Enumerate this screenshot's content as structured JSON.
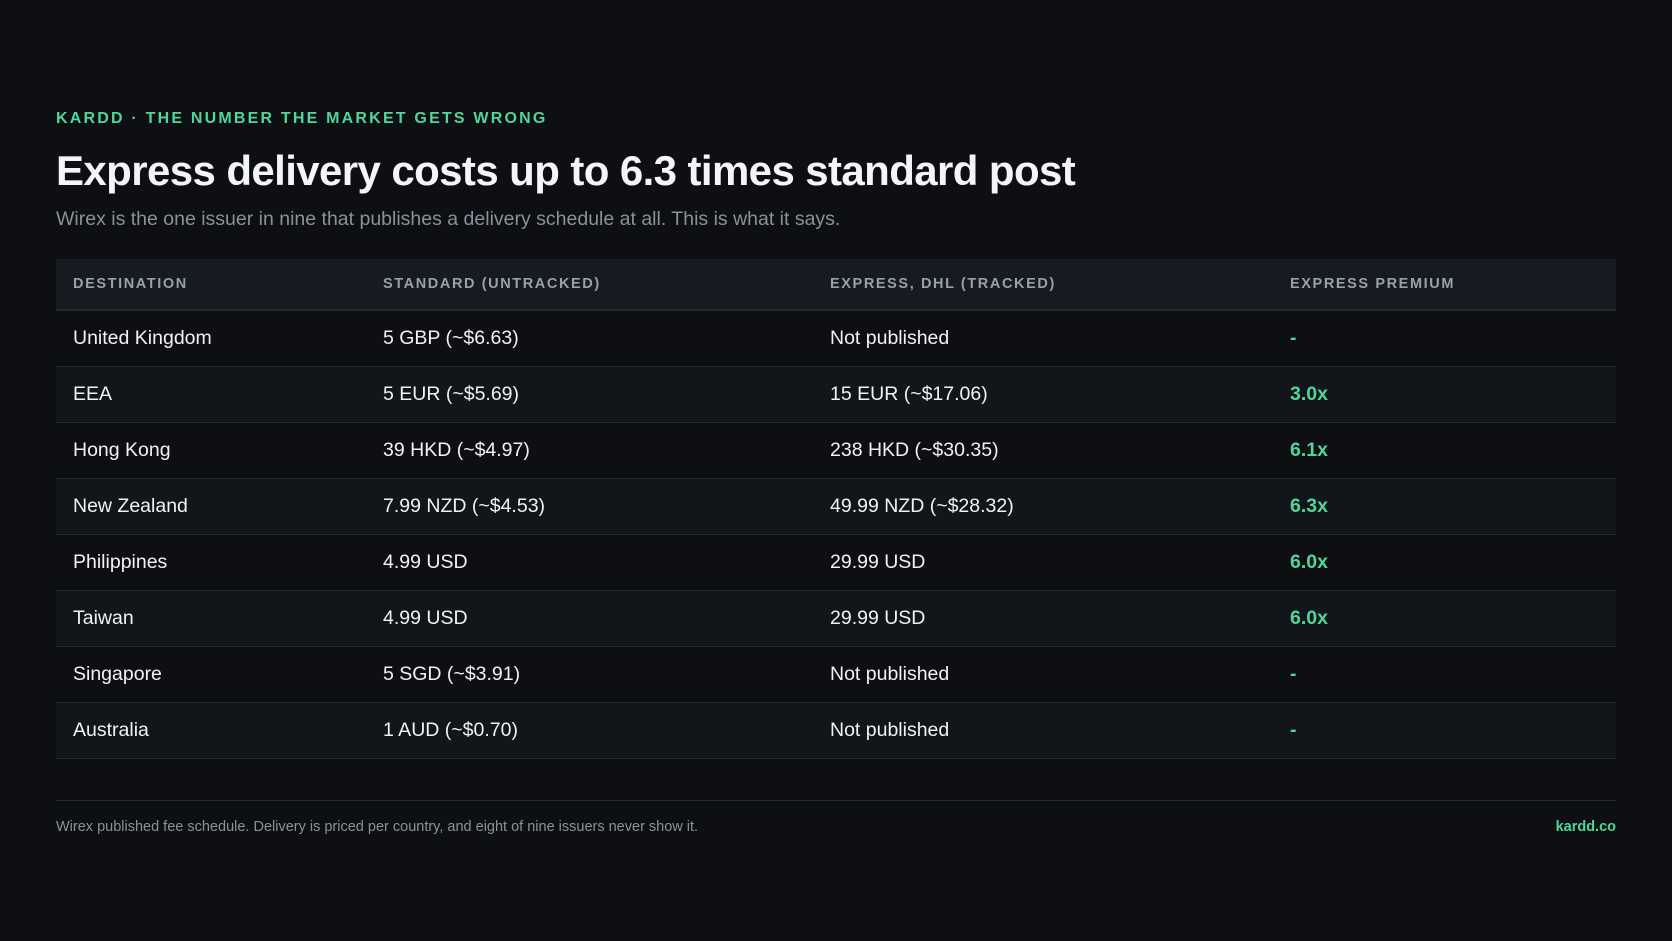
{
  "header": {
    "eyebrow": "KARDD · THE NUMBER THE MARKET GETS WRONG",
    "title": "Express delivery costs up to 6.3 times standard post",
    "subtitle": "Wirex is the one issuer in nine that publishes a delivery schedule at all. This is what it says."
  },
  "chart_data": {
    "type": "table",
    "columns": [
      "DESTINATION",
      "STANDARD (UNTRACKED)",
      "EXPRESS, DHL (TRACKED)",
      "EXPRESS PREMIUM"
    ],
    "rows": [
      [
        "United Kingdom",
        "5 GBP (~$6.63)",
        "Not published",
        "-"
      ],
      [
        "EEA",
        "5 EUR (~$5.69)",
        "15 EUR (~$17.06)",
        "3.0x"
      ],
      [
        "Hong Kong",
        "39 HKD (~$4.97)",
        "238 HKD (~$30.35)",
        "6.1x"
      ],
      [
        "New Zealand",
        "7.99 NZD (~$4.53)",
        "49.99 NZD (~$28.32)",
        "6.3x"
      ],
      [
        "Philippines",
        "4.99 USD",
        "29.99 USD",
        "6.0x"
      ],
      [
        "Taiwan",
        "4.99 USD",
        "29.99 USD",
        "6.0x"
      ],
      [
        "Singapore",
        "5 SGD (~$3.91)",
        "Not published",
        "-"
      ],
      [
        "Australia",
        "1 AUD (~$0.70)",
        "Not published",
        "-"
      ]
    ]
  },
  "footer": {
    "note": "Wirex published fee schedule. Delivery is priced per country, and eight of nine issuers never show it.",
    "brand": "kardd.co"
  },
  "colors": {
    "background": "#0d0f13",
    "accent": "#4fd69a",
    "header_row": "#161a21",
    "muted_text": "#8b909a"
  }
}
